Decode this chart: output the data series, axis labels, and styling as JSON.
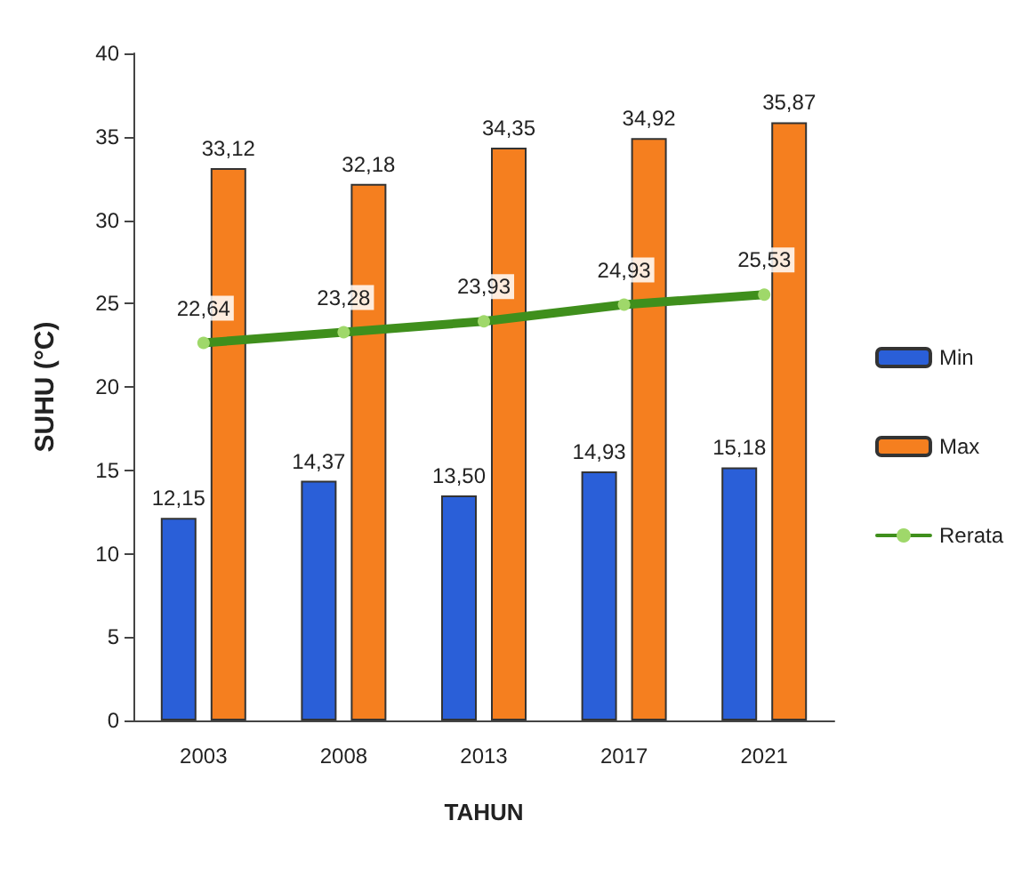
{
  "chart_data": {
    "type": "bar",
    "xlabel": "TAHUN",
    "ylabel": "SUHU (°C)",
    "categories": [
      "2003",
      "2008",
      "2013",
      "2017",
      "2021"
    ],
    "series": [
      {
        "name": "Min",
        "color": "#2a5fd8",
        "values": [
          12.15,
          14.37,
          13.5,
          14.93,
          15.18
        ],
        "value_labels": [
          "12,15",
          "14,37",
          "13,50",
          "14,93",
          "15,18"
        ]
      },
      {
        "name": "Max",
        "color": "#f57f1f",
        "values": [
          33.12,
          32.18,
          34.35,
          34.92,
          35.87
        ],
        "value_labels": [
          "33,12",
          "32,18",
          "34,35",
          "34,92",
          "35,87"
        ]
      },
      {
        "name": "Rerata",
        "type": "line",
        "color": "#3f8f1c",
        "values": [
          22.64,
          23.28,
          23.93,
          24.93,
          25.53
        ],
        "value_labels": [
          "22,64",
          "23,28",
          "23,93",
          "24,93",
          "25,53"
        ]
      }
    ],
    "ylim": [
      0,
      40
    ],
    "yticks": [
      0,
      5,
      10,
      15,
      20,
      25,
      30,
      35,
      40
    ],
    "grid": false,
    "legend": "right",
    "marker": "circle"
  }
}
